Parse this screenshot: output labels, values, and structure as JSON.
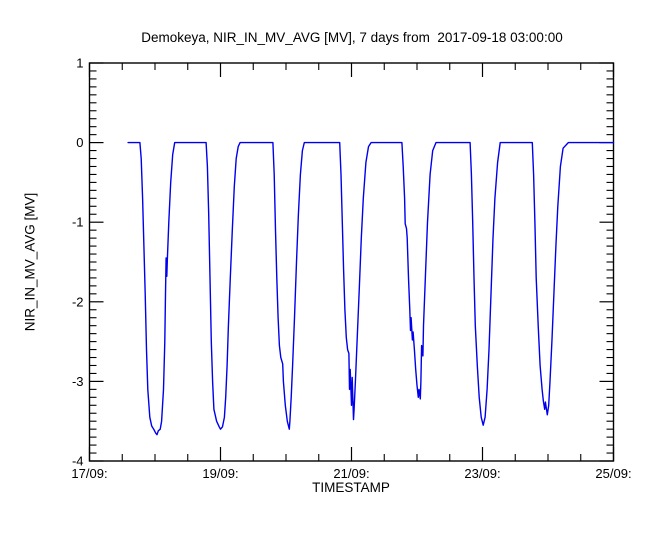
{
  "chart_data": {
    "type": "line",
    "title": "Demokeya, NIR_IN_MV_AVG [MV], 7 days from  2017-09-18 03:00:00",
    "xlabel": "TIMESTAMP",
    "ylabel": "NIR_IN_MV_AVG [MV]",
    "x_unit": "days since first x tick (17/09)",
    "xlim": [
      0,
      8
    ],
    "ylim": [
      -4,
      1
    ],
    "x_tick_positions": [
      0,
      2,
      4,
      6,
      8
    ],
    "x_tick_labels": [
      "17/09:",
      "19/09:",
      "21/09:",
      "23/09:",
      "25/09:"
    ],
    "x_minor_interval": 0.5,
    "y_tick_positions": [
      1,
      0,
      -1,
      -2,
      -3,
      -4
    ],
    "y_tick_labels": [
      "1",
      "0",
      "-1",
      "-2",
      "-3",
      "-4"
    ],
    "y_minor_interval": 0.1,
    "grid": false,
    "legend": "none",
    "frame_color": "#000000",
    "line_color": "#0000ee",
    "background_color": "#ffffff",
    "series": [
      {
        "name": "NIR_IN_MV_AVG",
        "points": [
          [
            0.59,
            0
          ],
          [
            0.77,
            0
          ],
          [
            0.79,
            -0.2
          ],
          [
            0.81,
            -0.7
          ],
          [
            0.83,
            -1.3
          ],
          [
            0.85,
            -1.9
          ],
          [
            0.87,
            -2.6
          ],
          [
            0.89,
            -3.1
          ],
          [
            0.92,
            -3.45
          ],
          [
            0.95,
            -3.56
          ],
          [
            0.98,
            -3.6
          ],
          [
            1.01,
            -3.65
          ],
          [
            1.03,
            -3.67
          ],
          [
            1.05,
            -3.62
          ],
          [
            1.08,
            -3.6
          ],
          [
            1.1,
            -3.5
          ],
          [
            1.13,
            -3.1
          ],
          [
            1.15,
            -2.5
          ],
          [
            1.16,
            -1.9
          ],
          [
            1.17,
            -1.45
          ],
          [
            1.18,
            -1.68
          ],
          [
            1.19,
            -1.45
          ],
          [
            1.21,
            -1.0
          ],
          [
            1.24,
            -0.5
          ],
          [
            1.27,
            -0.15
          ],
          [
            1.3,
            0
          ],
          [
            1.78,
            0
          ],
          [
            1.8,
            -0.3
          ],
          [
            1.82,
            -0.9
          ],
          [
            1.84,
            -1.7
          ],
          [
            1.86,
            -2.5
          ],
          [
            1.88,
            -3.0
          ],
          [
            1.9,
            -3.35
          ],
          [
            1.94,
            -3.5
          ],
          [
            1.98,
            -3.57
          ],
          [
            2.0,
            -3.6
          ],
          [
            2.03,
            -3.57
          ],
          [
            2.06,
            -3.45
          ],
          [
            2.08,
            -3.2
          ],
          [
            2.1,
            -2.8
          ],
          [
            2.12,
            -2.3
          ],
          [
            2.15,
            -1.7
          ],
          [
            2.18,
            -1.1
          ],
          [
            2.21,
            -0.55
          ],
          [
            2.24,
            -0.2
          ],
          [
            2.27,
            -0.05
          ],
          [
            2.3,
            0
          ],
          [
            2.8,
            0
          ],
          [
            2.82,
            -0.4
          ],
          [
            2.84,
            -1.1
          ],
          [
            2.86,
            -1.7
          ],
          [
            2.88,
            -2.2
          ],
          [
            2.9,
            -2.55
          ],
          [
            2.92,
            -2.7
          ],
          [
            2.95,
            -2.78
          ],
          [
            2.96,
            -3.0
          ],
          [
            2.99,
            -3.3
          ],
          [
            3.02,
            -3.5
          ],
          [
            3.05,
            -3.6
          ],
          [
            3.06,
            -3.5
          ],
          [
            3.08,
            -3.2
          ],
          [
            3.1,
            -2.8
          ],
          [
            3.13,
            -2.2
          ],
          [
            3.16,
            -1.5
          ],
          [
            3.19,
            -0.9
          ],
          [
            3.22,
            -0.4
          ],
          [
            3.25,
            -0.1
          ],
          [
            3.28,
            0
          ],
          [
            3.82,
            0
          ],
          [
            3.84,
            -0.4
          ],
          [
            3.86,
            -1.0
          ],
          [
            3.88,
            -1.6
          ],
          [
            3.9,
            -2.1
          ],
          [
            3.92,
            -2.45
          ],
          [
            3.94,
            -2.6
          ],
          [
            3.96,
            -2.65
          ],
          [
            3.97,
            -3.1
          ],
          [
            3.98,
            -2.85
          ],
          [
            4.0,
            -3.3
          ],
          [
            4.01,
            -2.95
          ],
          [
            4.03,
            -3.48
          ],
          [
            4.04,
            -3.35
          ],
          [
            4.06,
            -3.0
          ],
          [
            4.09,
            -2.4
          ],
          [
            4.12,
            -1.8
          ],
          [
            4.15,
            -1.2
          ],
          [
            4.18,
            -0.7
          ],
          [
            4.22,
            -0.25
          ],
          [
            4.26,
            -0.05
          ],
          [
            4.3,
            0
          ],
          [
            4.77,
            0
          ],
          [
            4.79,
            -0.3
          ],
          [
            4.81,
            -0.7
          ],
          [
            4.82,
            -1.02
          ],
          [
            4.84,
            -1.08
          ],
          [
            4.85,
            -1.2
          ],
          [
            4.87,
            -1.7
          ],
          [
            4.89,
            -2.1
          ],
          [
            4.9,
            -2.36
          ],
          [
            4.91,
            -2.2
          ],
          [
            4.93,
            -2.48
          ],
          [
            4.94,
            -2.38
          ],
          [
            4.96,
            -2.6
          ],
          [
            4.98,
            -2.85
          ],
          [
            5.0,
            -3.05
          ],
          [
            5.02,
            -3.2
          ],
          [
            5.03,
            -3.1
          ],
          [
            5.05,
            -3.22
          ],
          [
            5.06,
            -3.0
          ],
          [
            5.07,
            -2.55
          ],
          [
            5.09,
            -2.68
          ],
          [
            5.1,
            -2.3
          ],
          [
            5.13,
            -1.65
          ],
          [
            5.16,
            -1.0
          ],
          [
            5.2,
            -0.4
          ],
          [
            5.24,
            -0.1
          ],
          [
            5.29,
            0
          ],
          [
            5.81,
            0
          ],
          [
            5.83,
            -0.4
          ],
          [
            5.85,
            -1.0
          ],
          [
            5.87,
            -1.7
          ],
          [
            5.89,
            -2.3
          ],
          [
            5.92,
            -2.8
          ],
          [
            5.95,
            -3.2
          ],
          [
            5.98,
            -3.45
          ],
          [
            6.01,
            -3.55
          ],
          [
            6.04,
            -3.45
          ],
          [
            6.07,
            -3.1
          ],
          [
            6.1,
            -2.6
          ],
          [
            6.13,
            -1.9
          ],
          [
            6.16,
            -1.2
          ],
          [
            6.19,
            -0.7
          ],
          [
            6.23,
            -0.25
          ],
          [
            6.27,
            0
          ],
          [
            6.76,
            0
          ],
          [
            6.78,
            -0.4
          ],
          [
            6.8,
            -1.0
          ],
          [
            6.82,
            -1.7
          ],
          [
            6.85,
            -2.3
          ],
          [
            6.88,
            -2.8
          ],
          [
            6.91,
            -3.1
          ],
          [
            6.93,
            -3.25
          ],
          [
            6.95,
            -3.35
          ],
          [
            6.96,
            -3.26
          ],
          [
            6.99,
            -3.42
          ],
          [
            7.01,
            -3.3
          ],
          [
            7.03,
            -3.0
          ],
          [
            7.06,
            -2.5
          ],
          [
            7.09,
            -1.9
          ],
          [
            7.12,
            -1.3
          ],
          [
            7.15,
            -0.8
          ],
          [
            7.19,
            -0.3
          ],
          [
            7.23,
            -0.07
          ],
          [
            7.31,
            0
          ],
          [
            8.0,
            0
          ]
        ]
      }
    ]
  }
}
